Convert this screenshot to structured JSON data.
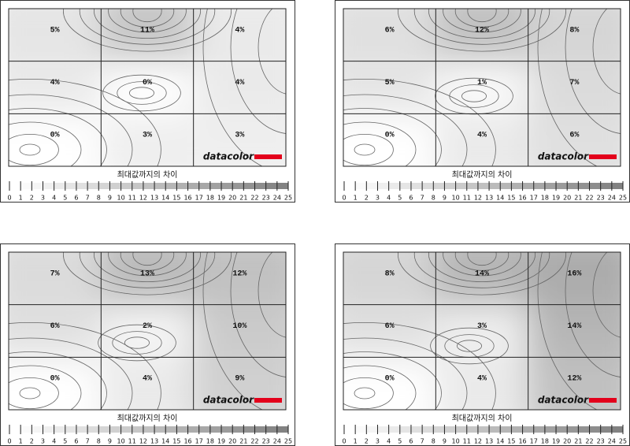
{
  "panels": [
    {
      "cells": [
        [
          "5%",
          "11%",
          "4%"
        ],
        [
          "4%",
          "0%",
          "4%"
        ],
        [
          "0%",
          "3%",
          "3%"
        ]
      ],
      "logo": "datacolor",
      "caption": "최대값까지의 차이",
      "scale": [
        0,
        1,
        2,
        3,
        4,
        5,
        6,
        7,
        8,
        9,
        10,
        11,
        12,
        13,
        14,
        15,
        16,
        17,
        18,
        19,
        20,
        21,
        22,
        23,
        24,
        25
      ]
    },
    {
      "cells": [
        [
          "6%",
          "12%",
          "8%"
        ],
        [
          "5%",
          "1%",
          "7%"
        ],
        [
          "0%",
          "4%",
          "6%"
        ]
      ],
      "logo": "datacolor",
      "caption": "최대값까지의 차이",
      "scale": [
        0,
        1,
        2,
        3,
        4,
        5,
        6,
        7,
        8,
        9,
        10,
        11,
        12,
        13,
        14,
        15,
        16,
        17,
        18,
        19,
        20,
        21,
        22,
        23,
        24,
        25
      ]
    },
    {
      "cells": [
        [
          "7%",
          "13%",
          "12%"
        ],
        [
          "6%",
          "2%",
          "10%"
        ],
        [
          "0%",
          "4%",
          "9%"
        ]
      ],
      "logo": "datacolor",
      "caption": "최대값까지의 차이",
      "scale": [
        0,
        1,
        2,
        3,
        4,
        5,
        6,
        7,
        8,
        9,
        10,
        11,
        12,
        13,
        14,
        15,
        16,
        17,
        18,
        19,
        20,
        21,
        22,
        23,
        24,
        25
      ]
    },
    {
      "cells": [
        [
          "8%",
          "14%",
          "16%"
        ],
        [
          "6%",
          "3%",
          "14%"
        ],
        [
          "0%",
          "4%",
          "12%"
        ]
      ],
      "logo": "datacolor",
      "caption": "최대값까지의 차이",
      "scale": [
        0,
        1,
        2,
        3,
        4,
        5,
        6,
        7,
        8,
        9,
        10,
        11,
        12,
        13,
        14,
        15,
        16,
        17,
        18,
        19,
        20,
        21,
        22,
        23,
        24,
        25
      ]
    }
  ]
}
